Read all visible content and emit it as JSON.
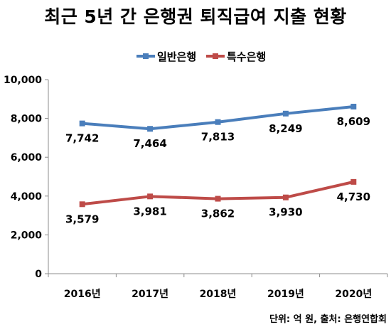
{
  "chart_data": {
    "type": "line",
    "title": "최근 5년 간 은행권 퇴직급여 지출 현황",
    "categories": [
      "2016년",
      "2017년",
      "2018년",
      "2019년",
      "2020년"
    ],
    "series": [
      {
        "name": "일반은행",
        "values": [
          7742,
          7464,
          7813,
          8249,
          8609
        ],
        "labels": [
          "7,742",
          "7,464",
          "7,813",
          "8,249",
          "8,609"
        ],
        "color": "#4a7ebb"
      },
      {
        "name": "특수은행",
        "values": [
          3579,
          3981,
          3862,
          3930,
          4730
        ],
        "labels": [
          "3,579",
          "3,981",
          "3,862",
          "3,930",
          "4,730"
        ],
        "color": "#be4b48"
      }
    ],
    "ylim": [
      0,
      10000
    ],
    "yticks": [
      "0",
      "2,000",
      "4,000",
      "6,000",
      "8,000",
      "10,000"
    ],
    "grid": false,
    "legend": "top-center",
    "source": "단위: 억 원, 출처: 은행연합회"
  }
}
